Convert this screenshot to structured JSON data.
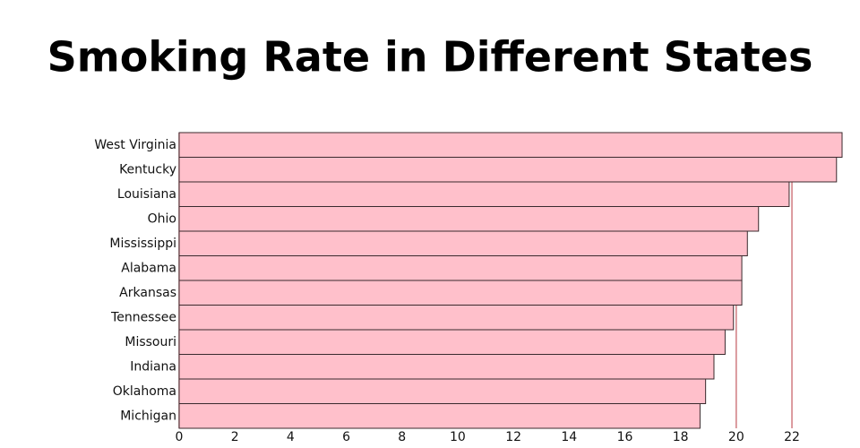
{
  "chart_data": {
    "type": "hbar",
    "title": "Smoking Rate in Different States",
    "categories": [
      "West Virginia",
      "Kentucky",
      "Louisiana",
      "Ohio",
      "Mississippi",
      "Alabama",
      "Arkansas",
      "Tennessee",
      "Missouri",
      "Indiana",
      "Oklahoma",
      "Michigan"
    ],
    "values": [
      23.8,
      23.6,
      21.9,
      20.8,
      20.4,
      20.2,
      20.2,
      19.9,
      19.6,
      19.2,
      18.9,
      18.7
    ],
    "color": "#ffc0cb",
    "edge_color": "#3a2a2e",
    "grid_color": "#d07a80",
    "xlim": [
      0,
      23.8
    ],
    "xticks": [
      0,
      2,
      4,
      6,
      8,
      10,
      12,
      14,
      16,
      18,
      20,
      22
    ],
    "grid": true
  }
}
